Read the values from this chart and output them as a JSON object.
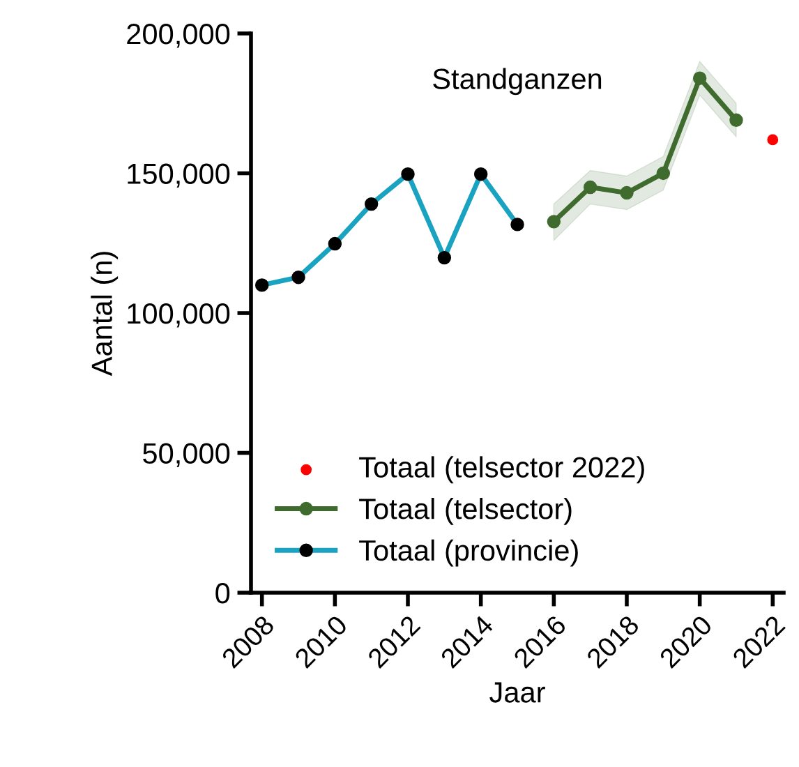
{
  "chart_data": {
    "type": "line",
    "title": "Standganzen",
    "xlabel": "Jaar",
    "ylabel": "Aantal (n)",
    "xlim": [
      2007.7,
      2022.3
    ],
    "xticks": [
      2008,
      2010,
      2012,
      2014,
      2016,
      2018,
      2020,
      2022
    ],
    "ylim": [
      0,
      200000
    ],
    "yticks": [
      {
        "value": 0,
        "label": "0"
      },
      {
        "value": 50000,
        "label": "50,000"
      },
      {
        "value": 100000,
        "label": "100,000"
      },
      {
        "value": 150000,
        "label": "150,000"
      },
      {
        "value": 200000,
        "label": "200,000"
      }
    ],
    "grid": false,
    "legend": "bottom left",
    "marker": "circle",
    "line_style": "solid",
    "series": [
      {
        "name": "Totaal (telsector 2022)",
        "type": "scatter",
        "color": "#ff0000",
        "x": [
          2022
        ],
        "values": [
          162000
        ]
      },
      {
        "name": "Totaal (telsector)",
        "color": "#3f6b2e",
        "x": [
          2016,
          2017,
          2018,
          2019,
          2020,
          2021
        ],
        "values": [
          132700,
          145000,
          143000,
          150000,
          184000,
          169000
        ],
        "lower": [
          126000,
          139000,
          137000,
          144000,
          178000,
          163000
        ],
        "upper": [
          139000,
          151000,
          149000,
          156000,
          190000,
          175000
        ]
      },
      {
        "name": "Totaal (provincie)",
        "color": "#1aa3c0",
        "x": [
          2008,
          2009,
          2010,
          2011,
          2012,
          2013,
          2014,
          2015
        ],
        "values": [
          110000,
          112800,
          124800,
          139000,
          149700,
          119800,
          149700,
          131700
        ]
      }
    ]
  }
}
